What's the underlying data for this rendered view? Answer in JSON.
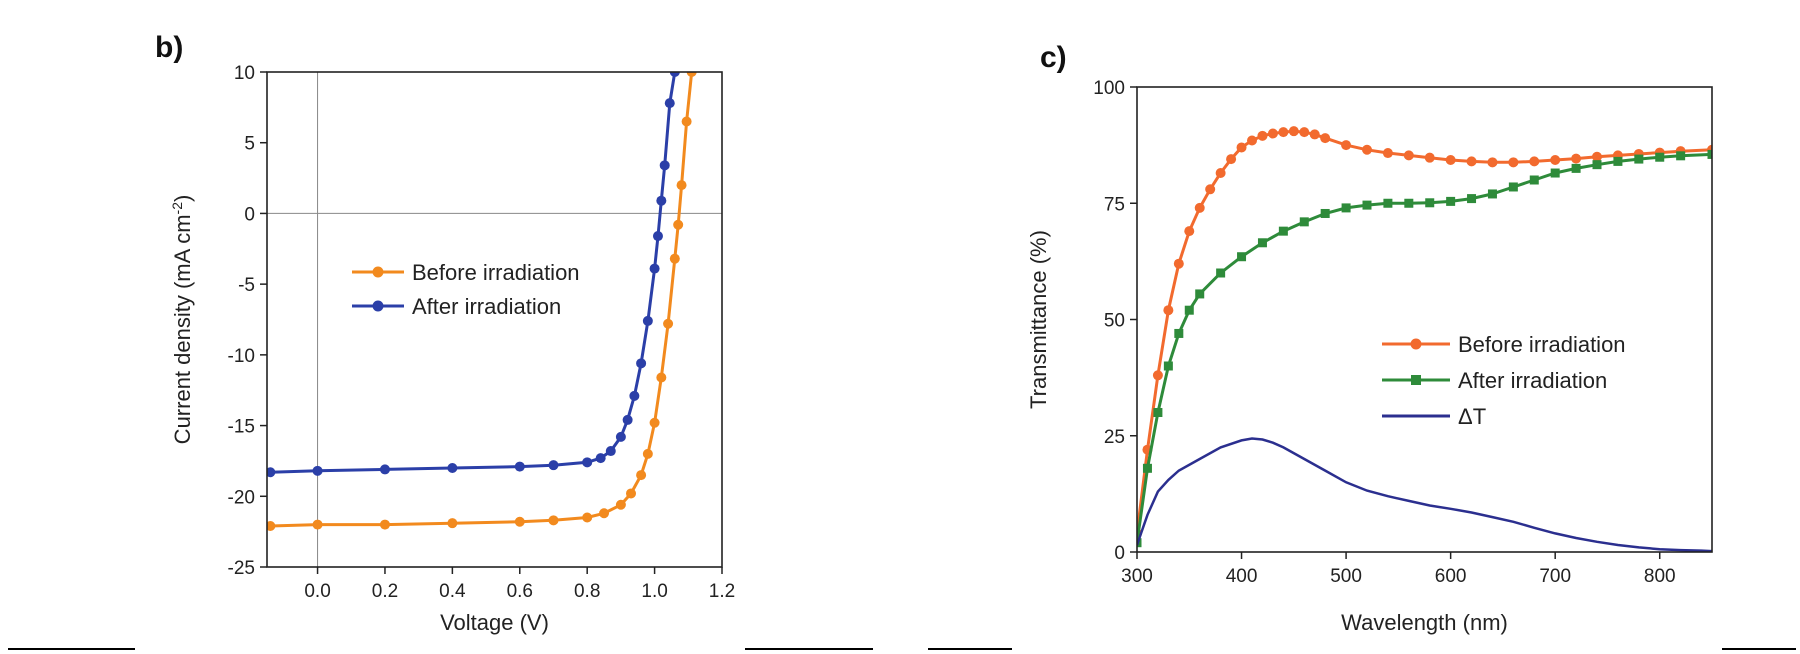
{
  "chart_data": [
    {
      "panel_label": "b)",
      "type": "line",
      "xlabel": "Voltage (V)",
      "ylabel": "Current density (mA cm",
      "ylabel_sup": "-2",
      "ylabel_tail": ")",
      "xlim": [
        -0.15,
        1.2
      ],
      "ylim": [
        -25,
        10
      ],
      "xticks": [
        0.0,
        0.2,
        0.4,
        0.6,
        0.8,
        1.0,
        1.2
      ],
      "xtick_labels": [
        "0.0",
        "0.2",
        "0.4",
        "0.6",
        "0.8",
        "1.0",
        "1.2"
      ],
      "yticks": [
        -25,
        -20,
        -15,
        -10,
        -5,
        0,
        5,
        10
      ],
      "ytick_labels": [
        "-25",
        "-20",
        "-15",
        "-10",
        "-5",
        "0",
        "5",
        "10"
      ],
      "zero_lines": true,
      "grid": false,
      "legend_position": "center",
      "series": [
        {
          "name": "Before irradiation",
          "color": "#f28a1e",
          "marker": "circle",
          "x": [
            -0.14,
            0.0,
            0.2,
            0.4,
            0.6,
            0.7,
            0.8,
            0.85,
            0.9,
            0.93,
            0.96,
            0.98,
            1.0,
            1.02,
            1.04,
            1.06,
            1.07,
            1.08,
            1.095,
            1.11
          ],
          "y": [
            -22.1,
            -22.0,
            -22.0,
            -21.9,
            -21.8,
            -21.7,
            -21.5,
            -21.2,
            -20.6,
            -19.8,
            -18.5,
            -17.0,
            -14.8,
            -11.6,
            -7.8,
            -3.2,
            -0.8,
            2.0,
            6.5,
            10.0
          ]
        },
        {
          "name": "After irradiation",
          "color": "#2b3fa8",
          "marker": "circle",
          "x": [
            -0.14,
            0.0,
            0.2,
            0.4,
            0.6,
            0.7,
            0.8,
            0.84,
            0.87,
            0.9,
            0.92,
            0.94,
            0.96,
            0.98,
            1.0,
            1.01,
            1.02,
            1.03,
            1.045,
            1.06
          ],
          "y": [
            -18.3,
            -18.2,
            -18.1,
            -18.0,
            -17.9,
            -17.8,
            -17.6,
            -17.3,
            -16.8,
            -15.8,
            -14.6,
            -12.9,
            -10.6,
            -7.6,
            -3.9,
            -1.6,
            0.9,
            3.4,
            7.8,
            10.0
          ]
        }
      ]
    },
    {
      "panel_label": "c)",
      "type": "line",
      "xlabel": "Wavelength (nm)",
      "ylabel": "Transmittance (%)",
      "xlim": [
        300,
        850
      ],
      "ylim": [
        0,
        100
      ],
      "xticks": [
        300,
        400,
        500,
        600,
        700,
        800
      ],
      "xtick_labels": [
        "300",
        "400",
        "500",
        "600",
        "700",
        "800"
      ],
      "yticks": [
        0,
        25,
        50,
        75,
        100
      ],
      "ytick_labels": [
        "0",
        "25",
        "50",
        "75",
        "100"
      ],
      "grid": false,
      "legend_position": "center-right",
      "series": [
        {
          "name": "Before irradiation",
          "color": "#f26a2e",
          "marker": "circle",
          "x": [
            300,
            310,
            320,
            330,
            340,
            350,
            360,
            370,
            380,
            390,
            400,
            410,
            420,
            430,
            440,
            450,
            460,
            470,
            480,
            500,
            520,
            540,
            560,
            580,
            600,
            620,
            640,
            660,
            680,
            700,
            720,
            740,
            760,
            780,
            800,
            820,
            850
          ],
          "y": [
            4,
            22,
            38,
            52,
            62,
            69,
            74,
            78,
            81.5,
            84.5,
            87,
            88.5,
            89.5,
            90,
            90.3,
            90.5,
            90.3,
            89.8,
            89,
            87.5,
            86.5,
            85.8,
            85.3,
            84.8,
            84.3,
            84.0,
            83.8,
            83.8,
            84.0,
            84.3,
            84.6,
            85.0,
            85.3,
            85.6,
            85.9,
            86.2,
            86.5
          ]
        },
        {
          "name": "After irradiation",
          "color": "#2e8b3a",
          "marker": "square",
          "x": [
            300,
            310,
            320,
            330,
            340,
            350,
            360,
            380,
            400,
            420,
            440,
            460,
            480,
            500,
            520,
            540,
            560,
            580,
            600,
            620,
            640,
            660,
            680,
            700,
            720,
            740,
            760,
            780,
            800,
            820,
            850
          ],
          "y": [
            2,
            18,
            30,
            40,
            47,
            52,
            55.5,
            60,
            63.5,
            66.5,
            69,
            71,
            72.8,
            74,
            74.6,
            75,
            75,
            75.1,
            75.4,
            76,
            77,
            78.5,
            80,
            81.5,
            82.5,
            83.3,
            84,
            84.5,
            84.9,
            85.2,
            85.5
          ]
        },
        {
          "name": "ΔT",
          "color": "#2b2f8f",
          "marker": "none",
          "x": [
            300,
            310,
            320,
            330,
            340,
            360,
            380,
            400,
            410,
            420,
            430,
            440,
            460,
            480,
            500,
            520,
            540,
            560,
            580,
            600,
            620,
            640,
            660,
            680,
            700,
            720,
            740,
            760,
            780,
            800,
            820,
            840,
            850
          ],
          "y": [
            1.5,
            8,
            13,
            15.5,
            17.5,
            20,
            22.5,
            24,
            24.4,
            24.2,
            23.5,
            22.5,
            20,
            17.5,
            15,
            13.2,
            12,
            11,
            10,
            9.3,
            8.5,
            7.5,
            6.5,
            5.2,
            4.0,
            3.0,
            2.2,
            1.5,
            1.0,
            0.6,
            0.4,
            0.3,
            0.2
          ]
        }
      ]
    }
  ]
}
